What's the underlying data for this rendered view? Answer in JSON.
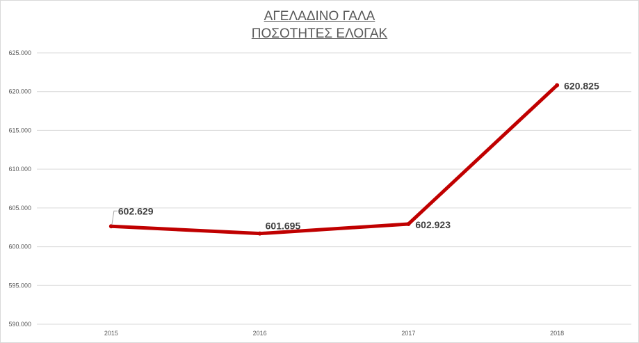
{
  "chart_data": {
    "type": "line",
    "title": "ΑΓΕΛΑΔΙΝΟ ΓΑΛΑ",
    "subtitle": "ΠΟΣΟΤΗΤΕΣ ΕΛΟΓΑΚ",
    "xlabel": "",
    "ylabel": "",
    "categories": [
      "2015",
      "2016",
      "2017",
      "2018"
    ],
    "series": [
      {
        "values": [
          602629,
          601695,
          602923,
          620825
        ],
        "data_labels": [
          "602.629",
          "601.695",
          "602.923",
          "620.825"
        ],
        "color": "#c00000"
      }
    ],
    "ylim": [
      590000,
      625000
    ],
    "y_ticks": [
      590000,
      595000,
      600000,
      605000,
      610000,
      615000,
      620000,
      625000
    ],
    "y_tick_labels": [
      "590.000",
      "595.000",
      "600.000",
      "605.000",
      "610.000",
      "615.000",
      "620.000",
      "625.000"
    ],
    "grid": true,
    "legend": "none",
    "colors": {
      "line": "#c00000",
      "grid": "#d9d9d9",
      "text": "#595959",
      "label": "#404040"
    }
  }
}
